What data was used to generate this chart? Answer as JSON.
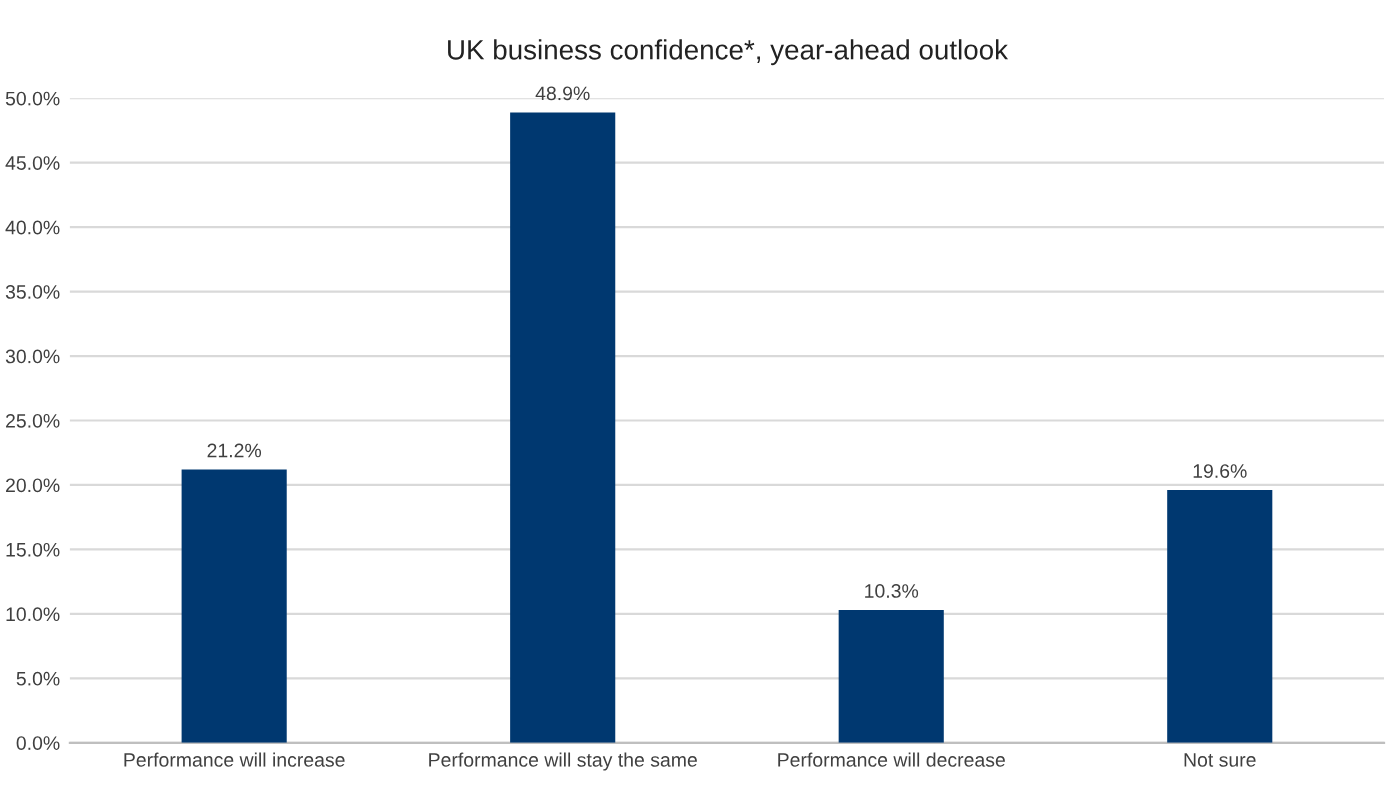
{
  "chart_data": {
    "type": "bar",
    "title": "UK business confidence*, year-ahead outlook",
    "categories": [
      "Performance will increase",
      "Performance will stay the same",
      "Performance will decrease",
      "Not sure"
    ],
    "values": [
      21.2,
      48.9,
      10.3,
      19.6
    ],
    "value_labels": [
      "21.2%",
      "48.9%",
      "10.3%",
      "19.6%"
    ],
    "color": "#003870",
    "ylim": [
      0,
      50
    ],
    "yticks": [
      {
        "value": 0,
        "label": "0.0%"
      },
      {
        "value": 5,
        "label": "5.0%"
      },
      {
        "value": 10,
        "label": "10.0%"
      },
      {
        "value": 15,
        "label": "15.0%"
      },
      {
        "value": 20,
        "label": "20.0%"
      },
      {
        "value": 25,
        "label": "25.0%"
      },
      {
        "value": 30,
        "label": "30.0%"
      },
      {
        "value": 35,
        "label": "35.0%"
      },
      {
        "value": 40,
        "label": "40.0%"
      },
      {
        "value": 45,
        "label": "45.0%"
      },
      {
        "value": 50,
        "label": "50.0%"
      }
    ],
    "grid": "y"
  }
}
